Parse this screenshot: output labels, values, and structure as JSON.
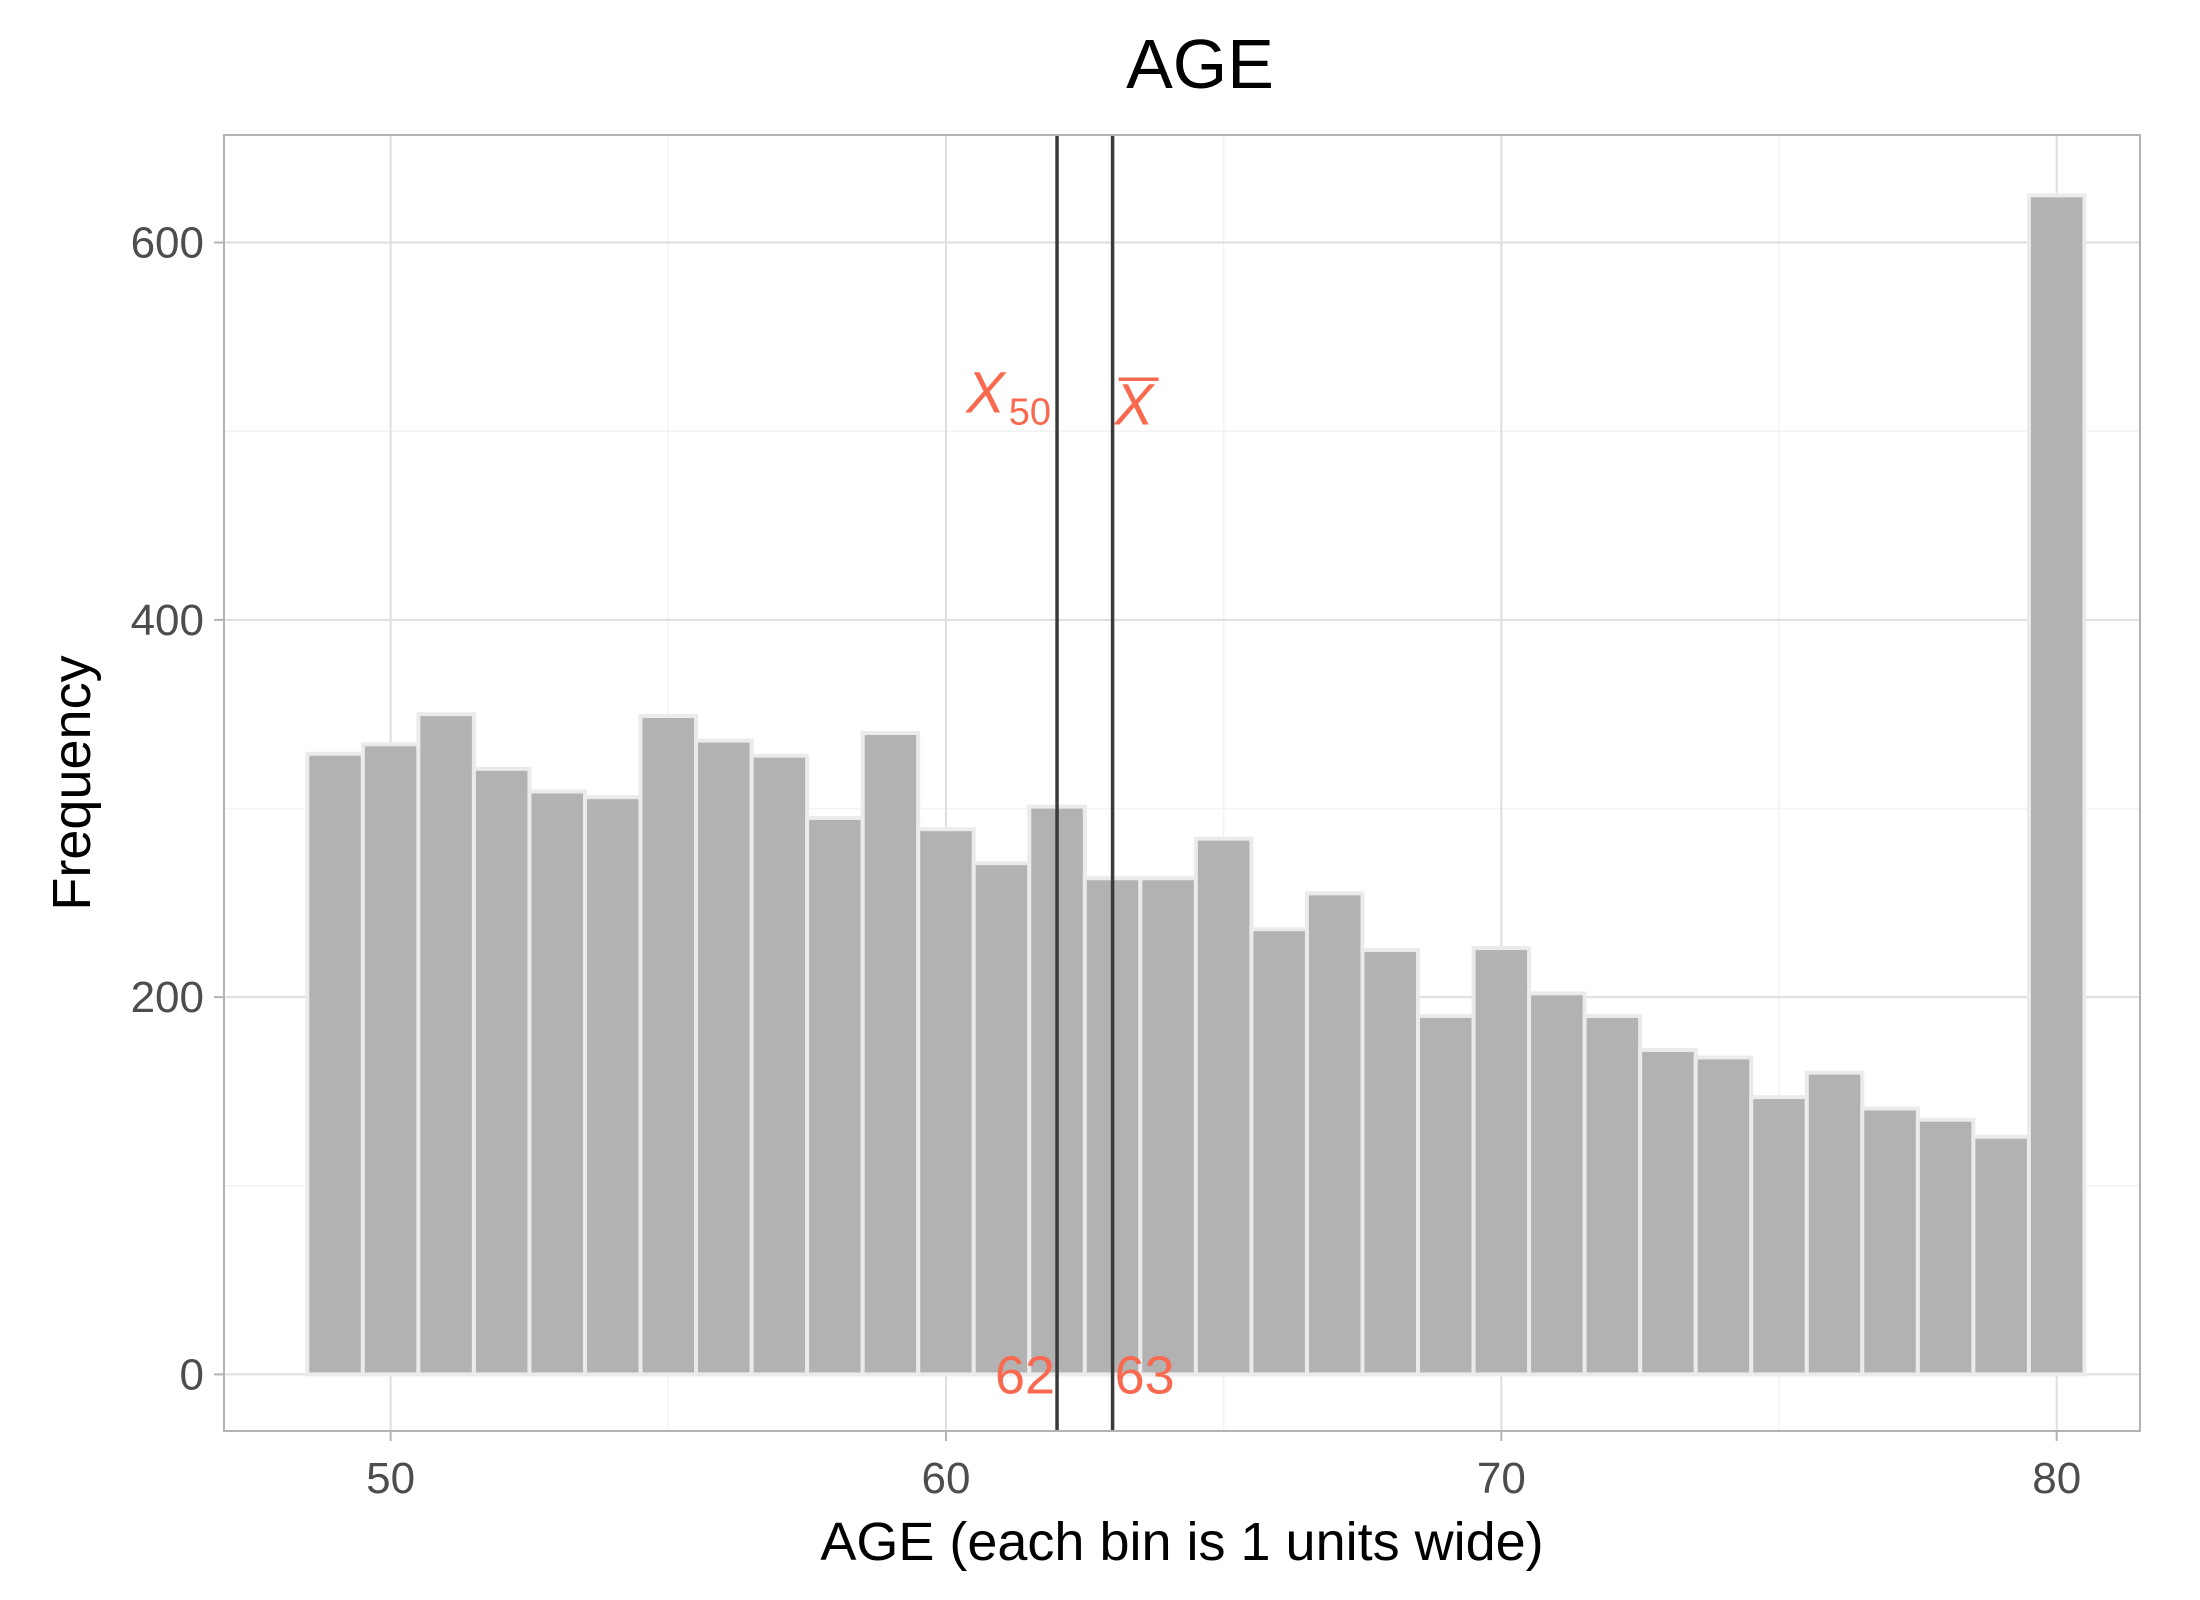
{
  "chart_data": {
    "type": "bar",
    "title": "AGE",
    "xlabel": "AGE (each bin is 1 units wide)",
    "ylabel": "Frequency",
    "x": [
      49,
      50,
      51,
      52,
      53,
      54,
      55,
      56,
      57,
      58,
      59,
      60,
      61,
      62,
      63,
      64,
      65,
      66,
      67,
      68,
      69,
      70,
      71,
      72,
      73,
      74,
      75,
      76,
      77,
      78,
      79,
      80
    ],
    "values": [
      329,
      334,
      350,
      321,
      309,
      306,
      349,
      336,
      328,
      295,
      340,
      289,
      271,
      301,
      263,
      263,
      284,
      236,
      255,
      225,
      190,
      226,
      202,
      190,
      172,
      168,
      147,
      160,
      141,
      135,
      126,
      625
    ],
    "bin_width": 1,
    "xlim": [
      47,
      81.5
    ],
    "ylim": [
      -30,
      657
    ],
    "x_ticks": [
      50,
      60,
      70,
      80
    ],
    "y_ticks": [
      0,
      200,
      400,
      600
    ],
    "grid": true,
    "colors": {
      "bar_fill": "#b2b2b2",
      "bar_outline": "#ebebeb",
      "annotation": "#f8694f",
      "reference_line": "#3a3a3a"
    },
    "reference_lines": [
      {
        "label_main": "X",
        "label_sub": "50",
        "value": 62,
        "value_label": "62"
      },
      {
        "label_main": "X",
        "value": 63,
        "value_label": "63",
        "overline": true
      }
    ]
  }
}
